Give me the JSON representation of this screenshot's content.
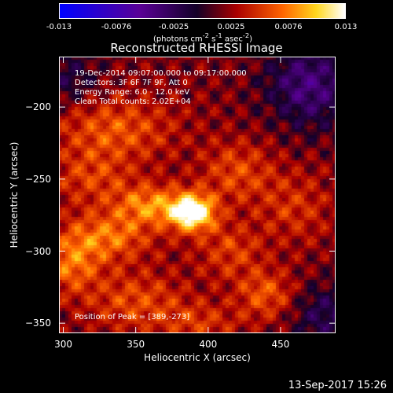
{
  "chart_data": {
    "type": "heatmap",
    "title": "Reconstructed RHESSI Image",
    "xlabel": "Heliocentric X (arcsec)",
    "ylabel": "Heliocentric Y (arcsec)",
    "xlim": [
      297,
      488
    ],
    "ylim": [
      -357,
      -165
    ],
    "x_ticks": [
      300,
      350,
      400,
      450
    ],
    "y_ticks": [
      -200,
      -250,
      -300,
      -350
    ],
    "colorbar": {
      "range": [
        -0.013,
        0.013
      ],
      "ticks": [
        "-0.013",
        "-0.0076",
        "-0.0025",
        "0.0025",
        "0.0076",
        "0.013"
      ],
      "units_text": "(photons cm",
      "units_exp1": "-2",
      "units_mid": " s",
      "units_exp2": "-1",
      "units_mid2": " asec",
      "units_exp3": "-2",
      "units_end": ")"
    },
    "annotations": {
      "time_range": "19-Dec-2014 09:07:00.000 to 09:17:00.000",
      "detectors": "Detectors: 3F 6F 7F 9F, Att 0",
      "energy": "Energy Range: 6.0 - 12.0 keV",
      "method": "Clean     Total counts: 2.02E+04",
      "peak": "Position of Peak = [389,-273]"
    },
    "peak": {
      "x": 389,
      "y": -273
    },
    "sources": [
      {
        "x": 389,
        "y": -273,
        "amp": 0.0125,
        "sx": 11,
        "sy": 9
      },
      {
        "x": 360,
        "y": -268,
        "amp": 0.006,
        "sx": 16,
        "sy": 10
      },
      {
        "x": 330,
        "y": -290,
        "amp": 0.0055,
        "sx": 22,
        "sy": 12
      },
      {
        "x": 305,
        "y": -310,
        "amp": 0.005,
        "sx": 14,
        "sy": 14
      },
      {
        "x": 335,
        "y": -215,
        "amp": 0.0045,
        "sx": 30,
        "sy": 16
      },
      {
        "x": 420,
        "y": -245,
        "amp": 0.004,
        "sx": 18,
        "sy": 15
      },
      {
        "x": 440,
        "y": -330,
        "amp": 0.0045,
        "sx": 14,
        "sy": 12
      },
      {
        "x": 415,
        "y": -300,
        "amp": 0.0035,
        "sx": 16,
        "sy": 14
      },
      {
        "x": 350,
        "y": -335,
        "amp": 0.004,
        "sx": 25,
        "sy": 15
      },
      {
        "x": 395,
        "y": -350,
        "amp": 0.003,
        "sx": 20,
        "sy": 10
      },
      {
        "x": 320,
        "y": -250,
        "amp": 0.0035,
        "sx": 20,
        "sy": 14
      },
      {
        "x": 460,
        "y": -270,
        "amp": 0.003,
        "sx": 18,
        "sy": 18
      },
      {
        "x": 470,
        "y": -185,
        "amp": -0.006,
        "sx": 20,
        "sy": 20
      },
      {
        "x": 480,
        "y": -345,
        "amp": -0.004,
        "sx": 15,
        "sy": 15
      },
      {
        "x": 305,
        "y": -180,
        "amp": -0.003,
        "sx": 15,
        "sy": 15
      }
    ]
  },
  "timestamp": "13-Sep-2017 15:26"
}
